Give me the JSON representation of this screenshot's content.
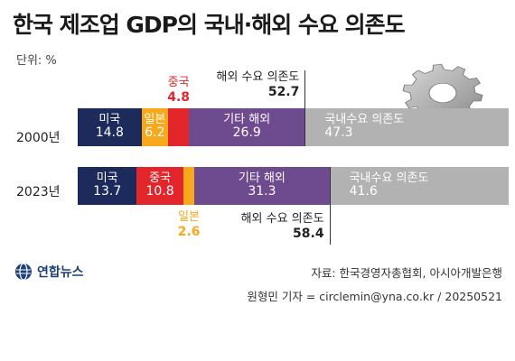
{
  "title": "한국 제조업 GDP의 국내·해외 수요 의존도",
  "unit_label": "단위: %",
  "colors": {
    "미국": "#1c2b5c",
    "일본": "#f7a81b",
    "중국": "#e3262b",
    "기타 해외": "#6e4a8e",
    "국내수요 의존도": "#b2b2b2"
  },
  "chart_data": {
    "type": "bar",
    "stacked": true,
    "orientation": "horizontal",
    "categories": [
      "2000년",
      "2023년"
    ],
    "series": [
      {
        "name": "미국",
        "values": [
          14.8,
          13.7
        ]
      },
      {
        "name": "일본",
        "values": [
          6.2,
          2.6
        ]
      },
      {
        "name": "중국",
        "values": [
          4.8,
          10.8
        ]
      },
      {
        "name": "기타 해외",
        "values": [
          26.9,
          31.3
        ]
      },
      {
        "name": "국내수요 의존도",
        "values": [
          47.3,
          41.6
        ]
      }
    ],
    "rows": [
      {
        "year": "2000년",
        "segments": [
          {
            "label": "미국",
            "value": "14.8"
          },
          {
            "label": "일본",
            "value": "6.2"
          },
          {
            "label": "중국",
            "value": "4.8"
          },
          {
            "label": "기타 해외",
            "value": "26.9"
          },
          {
            "label": "국내수요 의존도",
            "value": "47.3"
          }
        ],
        "overseas_label": "해외 수요 의존도",
        "overseas_total": "52.7"
      },
      {
        "year": "2023년",
        "segments": [
          {
            "label": "미국",
            "value": "13.7"
          },
          {
            "label": "중국",
            "value": "10.8"
          },
          {
            "label": "일본",
            "value": "2.6"
          },
          {
            "label": "기타 해외",
            "value": "31.3"
          },
          {
            "label": "국내수요 의존도",
            "value": "41.6"
          }
        ],
        "overseas_label": "해외 수요 의존도",
        "overseas_total": "58.4"
      }
    ]
  },
  "gear_icon": "gear-icon",
  "logo": {
    "icon": "yonhap-globe-icon",
    "text": "연합뉴스"
  },
  "source": "자료: 한국경영자총협회, 아시아개발은행",
  "credit": "원형민 기자 = circlemin@yna.co.kr / 20250521"
}
